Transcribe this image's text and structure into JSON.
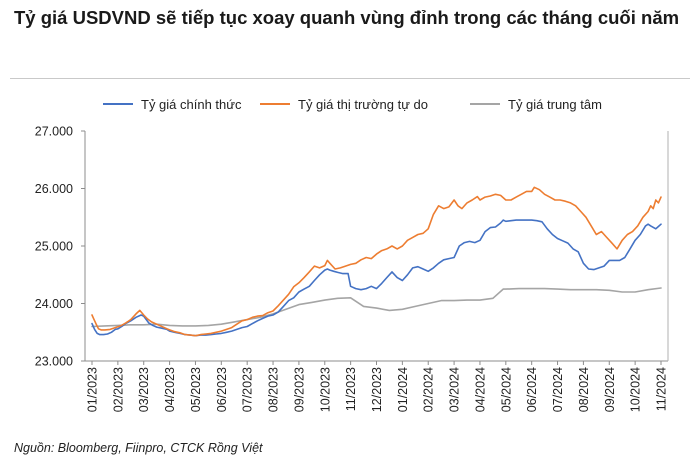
{
  "title": "Tỷ giá USDVND sẽ tiếp tục xoay quanh vùng đỉnh trong các tháng cuối năm",
  "source": "Nguồn: Bloomberg, Fiinpro, CTCK Rồng Việt",
  "chart_data": {
    "type": "line",
    "title": "Tỷ giá USDVND sẽ tiếp tục xoay quanh vùng đỉnh trong các tháng cuối năm",
    "xlabel": "",
    "ylabel": "",
    "ylim": [
      23000,
      27000
    ],
    "yticks": [
      "23.000",
      "24.000",
      "25.000",
      "26.000",
      "27.000"
    ],
    "categories": [
      "01/2023",
      "02/2023",
      "03/2023",
      "04/2023",
      "05/2023",
      "06/2023",
      "07/2023",
      "08/2023",
      "09/2023",
      "10/2023",
      "11/2023",
      "12/2023",
      "01/2024",
      "02/2024",
      "03/2024",
      "04/2024",
      "05/2024",
      "06/2024",
      "07/2024",
      "08/2024",
      "09/2024",
      "10/2024",
      "11/2024"
    ],
    "grid": false,
    "legend_position": "top",
    "series": [
      {
        "name": "Tỷ giá chính thức",
        "color": "#4472C4",
        "x": [
          0,
          0.05,
          0.1,
          0.2,
          0.3,
          0.45,
          0.6,
          0.75,
          0.9,
          1.0,
          1.15,
          1.3,
          1.5,
          1.7,
          1.9,
          2.0,
          2.1,
          2.2,
          2.35,
          2.5,
          2.7,
          2.9,
          3.0,
          3.2,
          3.4,
          3.6,
          3.8,
          4.0,
          4.2,
          4.4,
          4.6,
          4.8,
          5.0,
          5.2,
          5.4,
          5.6,
          5.8,
          6.0,
          6.2,
          6.4,
          6.6,
          6.8,
          7.0,
          7.2,
          7.4,
          7.6,
          7.8,
          8.0,
          8.2,
          8.4,
          8.6,
          8.8,
          9.0,
          9.1,
          9.2,
          9.35,
          9.5,
          9.7,
          9.9,
          10.0,
          10.2,
          10.4,
          10.6,
          10.8,
          11.0,
          11.2,
          11.4,
          11.6,
          11.8,
          12.0,
          12.2,
          12.4,
          12.6,
          12.8,
          13.0,
          13.2,
          13.4,
          13.6,
          13.8,
          14.0,
          14.2,
          14.4,
          14.6,
          14.8,
          15.0,
          15.2,
          15.4,
          15.6,
          15.8,
          15.9,
          16.0,
          16.2,
          16.4,
          16.6,
          16.8,
          17.0,
          17.2,
          17.4,
          17.6,
          17.8,
          18.0,
          18.2,
          18.4,
          18.6,
          18.8,
          19.0,
          19.2,
          19.4,
          19.6,
          19.8,
          20.0,
          20.2,
          20.4,
          20.6,
          20.8,
          21.0,
          21.2,
          21.4,
          21.5,
          21.6,
          21.8,
          21.9,
          22.0
        ],
        "values": [
          23650,
          23600,
          23550,
          23480,
          23460,
          23460,
          23470,
          23500,
          23550,
          23560,
          23600,
          23650,
          23700,
          23760,
          23800,
          23780,
          23720,
          23660,
          23620,
          23590,
          23570,
          23550,
          23520,
          23500,
          23480,
          23460,
          23450,
          23440,
          23450,
          23450,
          23460,
          23470,
          23480,
          23500,
          23520,
          23550,
          23580,
          23600,
          23650,
          23700,
          23740,
          23780,
          23800,
          23850,
          23950,
          24050,
          24100,
          24200,
          24250,
          24300,
          24400,
          24500,
          24580,
          24600,
          24580,
          24560,
          24540,
          24520,
          24520,
          24300,
          24260,
          24240,
          24260,
          24300,
          24260,
          24350,
          24450,
          24550,
          24450,
          24400,
          24500,
          24620,
          24640,
          24600,
          24560,
          24620,
          24700,
          24760,
          24780,
          24800,
          25000,
          25060,
          25080,
          25060,
          25100,
          25250,
          25320,
          25330,
          25400,
          25450,
          25430,
          25440,
          25450,
          25450,
          25450,
          25450,
          25440,
          25420,
          25300,
          25200,
          25130,
          25090,
          25050,
          24950,
          24900,
          24700,
          24600,
          24590,
          24620,
          24650,
          24750,
          24750,
          24750,
          24800,
          24950,
          25100,
          25200,
          25350,
          25380,
          25350,
          25300,
          25340,
          25380
        ]
      },
      {
        "name": "Tỷ giá thị trường tự do",
        "color": "#ED7D31",
        "x": [
          0,
          0.05,
          0.15,
          0.25,
          0.35,
          0.5,
          0.7,
          0.9,
          1.1,
          1.3,
          1.5,
          1.7,
          1.85,
          2.0,
          2.15,
          2.3,
          2.5,
          2.7,
          2.9,
          3.0,
          3.2,
          3.4,
          3.6,
          3.8,
          4.0,
          4.2,
          4.4,
          4.6,
          4.8,
          5.0,
          5.2,
          5.4,
          5.6,
          5.8,
          6.0,
          6.2,
          6.4,
          6.6,
          6.8,
          7.0,
          7.2,
          7.4,
          7.6,
          7.8,
          8.0,
          8.2,
          8.4,
          8.6,
          8.8,
          9.0,
          9.1,
          9.2,
          9.4,
          9.6,
          9.8,
          10.0,
          10.2,
          10.4,
          10.6,
          10.8,
          11.0,
          11.2,
          11.4,
          11.6,
          11.8,
          12.0,
          12.2,
          12.4,
          12.6,
          12.8,
          13.0,
          13.2,
          13.4,
          13.6,
          13.8,
          14.0,
          14.15,
          14.3,
          14.5,
          14.7,
          14.9,
          15.0,
          15.2,
          15.4,
          15.6,
          15.8,
          16.0,
          16.2,
          16.4,
          16.6,
          16.8,
          17.0,
          17.1,
          17.3,
          17.5,
          17.7,
          17.9,
          18.1,
          18.3,
          18.5,
          18.7,
          18.9,
          19.1,
          19.3,
          19.5,
          19.7,
          19.9,
          20.1,
          20.3,
          20.5,
          20.7,
          20.9,
          21.1,
          21.3,
          21.5,
          21.6,
          21.7,
          21.8,
          21.9,
          22.0
        ],
        "values": [
          23800,
          23750,
          23650,
          23560,
          23540,
          23540,
          23550,
          23580,
          23610,
          23660,
          23720,
          23820,
          23880,
          23800,
          23730,
          23680,
          23640,
          23600,
          23560,
          23540,
          23510,
          23490,
          23460,
          23450,
          23440,
          23460,
          23470,
          23480,
          23500,
          23520,
          23550,
          23580,
          23640,
          23700,
          23720,
          23760,
          23780,
          23790,
          23840,
          23870,
          23960,
          24060,
          24160,
          24290,
          24360,
          24450,
          24550,
          24650,
          24620,
          24660,
          24750,
          24700,
          24600,
          24620,
          24650,
          24680,
          24700,
          24760,
          24800,
          24780,
          24860,
          24920,
          24950,
          25000,
          24950,
          25000,
          25100,
          25150,
          25200,
          25220,
          25300,
          25550,
          25700,
          25650,
          25680,
          25800,
          25700,
          25650,
          25750,
          25800,
          25860,
          25800,
          25850,
          25870,
          25900,
          25880,
          25800,
          25800,
          25850,
          25900,
          25950,
          25950,
          26020,
          25980,
          25900,
          25850,
          25800,
          25800,
          25780,
          25750,
          25700,
          25600,
          25500,
          25350,
          25200,
          25250,
          25150,
          25050,
          24950,
          25100,
          25200,
          25250,
          25350,
          25500,
          25600,
          25700,
          25650,
          25800,
          25750,
          25850
        ]
      },
      {
        "name": "Tỷ giá trung tâm",
        "color": "#A5A5A5",
        "x": [
          0,
          0.5,
          1.0,
          1.5,
          2.0,
          2.5,
          3.0,
          3.5,
          4.0,
          4.5,
          5.0,
          5.5,
          6.0,
          6.5,
          7.0,
          7.5,
          8.0,
          8.5,
          9.0,
          9.5,
          10.0,
          10.5,
          11.0,
          11.5,
          12.0,
          12.5,
          13.0,
          13.5,
          14.0,
          14.5,
          15.0,
          15.5,
          15.9,
          16.0,
          16.5,
          17.0,
          17.5,
          18.0,
          18.5,
          19.0,
          19.5,
          20.0,
          20.5,
          21.0,
          21.5,
          22.0
        ],
        "values": [
          23600,
          23610,
          23620,
          23630,
          23630,
          23640,
          23620,
          23610,
          23610,
          23620,
          23640,
          23680,
          23720,
          23760,
          23820,
          23900,
          23980,
          24020,
          24060,
          24090,
          24100,
          23950,
          23920,
          23880,
          23900,
          23950,
          24000,
          24050,
          24050,
          24060,
          24060,
          24090,
          24250,
          24250,
          24260,
          24260,
          24260,
          24250,
          24240,
          24240,
          24240,
          24230,
          24200,
          24200,
          24240,
          24270
        ]
      }
    ]
  }
}
